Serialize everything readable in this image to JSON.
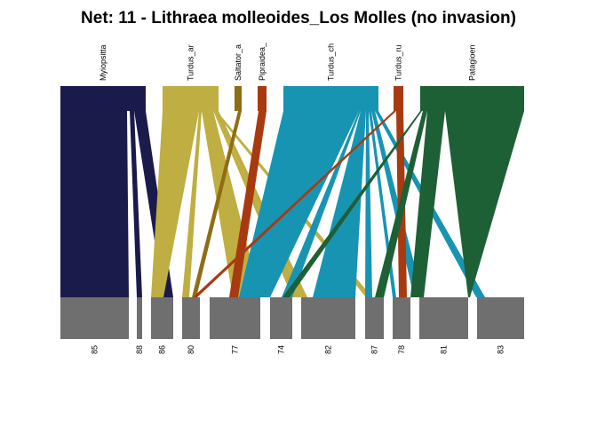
{
  "title": "Net: 11 - Lithraea molleoides_Los Molles (no invasion)",
  "colors": {
    "lower_box": "#6f6f6f",
    "Myiopsitta": "#1b1b4b",
    "Turdus_ar": "#bfae41",
    "Saltator_a": "#8f6d14",
    "Pipraidea_": "#a83a11",
    "Turdus_ch": "#1894b3",
    "Turdus_ru": "#a83a11",
    "Patagioen": "#1e6035"
  },
  "chart_data": {
    "type": "bipartite-network",
    "title": "Net: 11 - Lithraea molleoides_Los Molles (no invasion)",
    "higher": [
      "Myiopsitta",
      "Turdus_ar",
      "Saltator_a",
      "Pipraidea_",
      "Turdus_ch",
      "Turdus_ru",
      "Patagioen"
    ],
    "lower": [
      "85",
      "88",
      "86",
      "80",
      "77",
      "74",
      "82",
      "87",
      "78",
      "81",
      "83"
    ],
    "links": [
      {
        "from": "Myiopsitta",
        "to": "85"
      },
      {
        "from": "Myiopsitta",
        "to": "88"
      },
      {
        "from": "Myiopsitta",
        "to": "86"
      },
      {
        "from": "Turdus_ar",
        "to": "86"
      },
      {
        "from": "Turdus_ar",
        "to": "80"
      },
      {
        "from": "Turdus_ar",
        "to": "77"
      },
      {
        "from": "Turdus_ar",
        "to": "74"
      },
      {
        "from": "Turdus_ar",
        "to": "82"
      },
      {
        "from": "Turdus_ar",
        "to": "87"
      },
      {
        "from": "Saltator_a",
        "to": "80"
      },
      {
        "from": "Pipraidea_",
        "to": "77"
      },
      {
        "from": "Turdus_ch",
        "to": "77"
      },
      {
        "from": "Turdus_ch",
        "to": "74"
      },
      {
        "from": "Turdus_ch",
        "to": "82"
      },
      {
        "from": "Turdus_ch",
        "to": "87"
      },
      {
        "from": "Turdus_ch",
        "to": "78"
      },
      {
        "from": "Turdus_ch",
        "to": "81"
      },
      {
        "from": "Turdus_ch",
        "to": "83"
      },
      {
        "from": "Turdus_ru",
        "to": "80"
      },
      {
        "from": "Turdus_ru",
        "to": "78"
      },
      {
        "from": "Patagioen",
        "to": "74"
      },
      {
        "from": "Patagioen",
        "to": "87"
      },
      {
        "from": "Patagioen",
        "to": "78"
      },
      {
        "from": "Patagioen",
        "to": "81"
      },
      {
        "from": "Patagioen",
        "to": "83"
      }
    ]
  }
}
